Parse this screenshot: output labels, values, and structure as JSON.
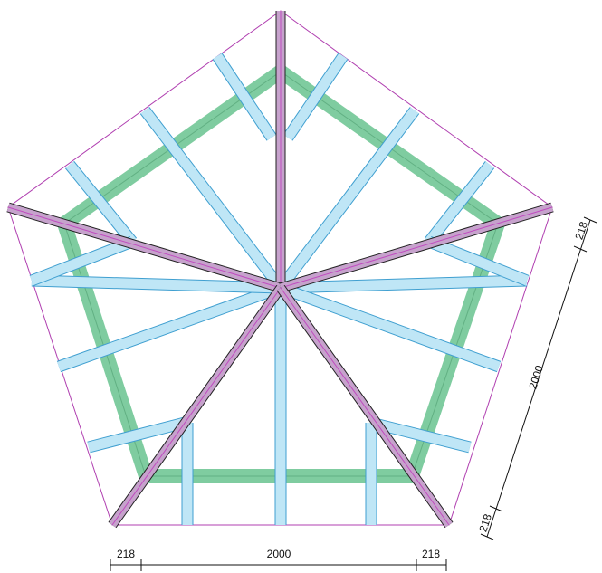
{
  "colors": {
    "outline": "#b03fb0",
    "purlin_fill": "#7fcca0",
    "purlin_stroke": "#3f8f5f",
    "rafter_fill": "#bfe6f6",
    "rafter_stroke": "#3f9fd0",
    "hip_fill": "#c6a2cc",
    "hip_stroke": "#222222",
    "hip_center": "#c04cc0",
    "dimension": "#111111"
  },
  "dimensions": {
    "bottom_left": "218",
    "bottom_middle": "2000",
    "bottom_right": "218",
    "side_top": "218",
    "side_middle": "2000",
    "side_bottom": "218"
  }
}
